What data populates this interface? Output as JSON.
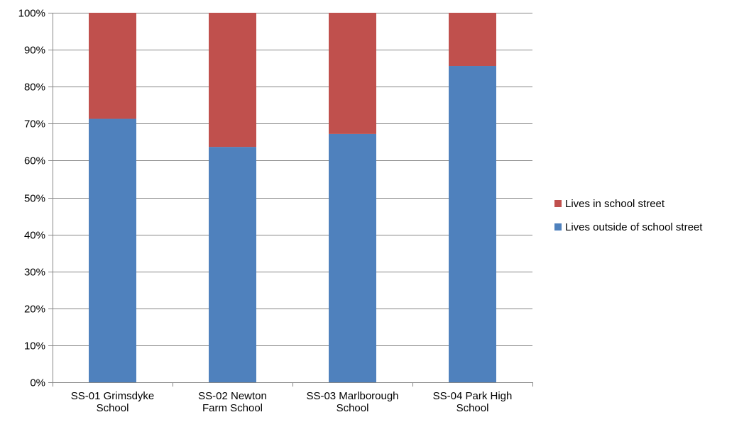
{
  "chart_data": {
    "type": "bar",
    "stacked": true,
    "percent": true,
    "categories": [
      [
        "SS-01 Grimsdyke",
        "School"
      ],
      [
        "SS-02 Newton",
        "Farm School"
      ],
      [
        "SS-03 Marlborough",
        "School"
      ],
      [
        "SS-04 Park High",
        "School"
      ]
    ],
    "series": [
      {
        "name": "Lives outside of school street",
        "color": "#4F81BD",
        "values": [
          71.3,
          63.7,
          67.2,
          85.6
        ]
      },
      {
        "name": "Lives in school street",
        "color": "#C0504D",
        "values": [
          28.7,
          36.3,
          32.8,
          14.4
        ]
      }
    ],
    "title": "",
    "xlabel": "",
    "ylabel": "",
    "ylim": [
      0,
      100
    ],
    "yticks": [
      "0%",
      "10%",
      "20%",
      "30%",
      "40%",
      "50%",
      "60%",
      "70%",
      "80%",
      "90%",
      "100%"
    ],
    "grid": true,
    "legend_position": "right",
    "legend_order": [
      "Lives in school street",
      "Lives outside of school street"
    ]
  }
}
